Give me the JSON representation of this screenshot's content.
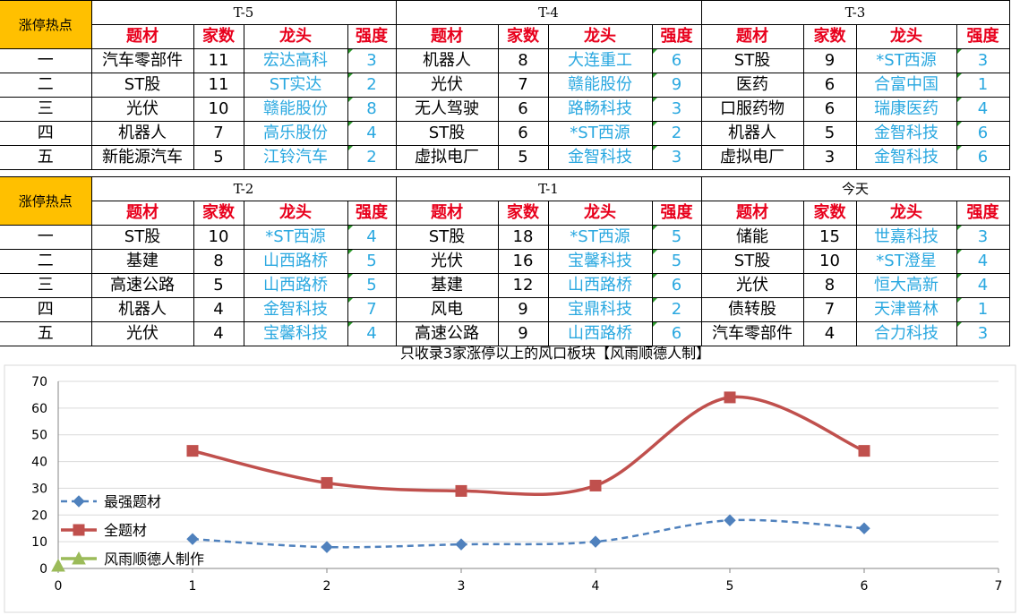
{
  "corner_label": "涨停热点",
  "column_headers": {
    "theme": "题材",
    "count": "家数",
    "leader": "龙头",
    "strength": "强度"
  },
  "rank_labels": [
    "一",
    "二",
    "三",
    "四",
    "五"
  ],
  "top_periods": [
    {
      "label": "T-5",
      "rows": [
        {
          "theme": "汽车零部件",
          "count": "11",
          "leader": "宏达高科",
          "strength": "3"
        },
        {
          "theme": "ST股",
          "count": "11",
          "leader": "ST实达",
          "strength": "2"
        },
        {
          "theme": "光伏",
          "count": "10",
          "leader": "赣能股份",
          "strength": "8"
        },
        {
          "theme": "机器人",
          "count": "7",
          "leader": "高乐股份",
          "strength": "4"
        },
        {
          "theme": "新能源汽车",
          "count": "5",
          "leader": "江铃汽车",
          "strength": "2"
        }
      ]
    },
    {
      "label": "T-4",
      "rows": [
        {
          "theme": "机器人",
          "count": "8",
          "leader": "大连重工",
          "strength": "6"
        },
        {
          "theme": "光伏",
          "count": "7",
          "leader": "赣能股份",
          "strength": "9"
        },
        {
          "theme": "无人驾驶",
          "count": "6",
          "leader": "路畅科技",
          "strength": "3"
        },
        {
          "theme": "ST股",
          "count": "6",
          "leader": "*ST西源",
          "strength": "2"
        },
        {
          "theme": "虚拟电厂",
          "count": "5",
          "leader": "金智科技",
          "strength": "3"
        }
      ]
    },
    {
      "label": "T-3",
      "rows": [
        {
          "theme": "ST股",
          "count": "9",
          "leader": "*ST西源",
          "strength": "3"
        },
        {
          "theme": "医药",
          "count": "6",
          "leader": "合富中国",
          "strength": "1"
        },
        {
          "theme": "口服药物",
          "count": "6",
          "leader": "瑞康医药",
          "strength": "4"
        },
        {
          "theme": "机器人",
          "count": "5",
          "leader": "金智科技",
          "strength": "6"
        },
        {
          "theme": "虚拟电厂",
          "count": "3",
          "leader": "金智科技",
          "strength": "6"
        }
      ]
    }
  ],
  "bottom_periods": [
    {
      "label": "T-2",
      "rows": [
        {
          "theme": "ST股",
          "count": "10",
          "leader": "*ST西源",
          "strength": "4"
        },
        {
          "theme": "基建",
          "count": "8",
          "leader": "山西路桥",
          "strength": "5"
        },
        {
          "theme": "高速公路",
          "count": "5",
          "leader": "山西路桥",
          "strength": "5"
        },
        {
          "theme": "机器人",
          "count": "4",
          "leader": "金智科技",
          "strength": "7"
        },
        {
          "theme": "光伏",
          "count": "4",
          "leader": "宝馨科技",
          "strength": "4"
        }
      ]
    },
    {
      "label": "T-1",
      "rows": [
        {
          "theme": "ST股",
          "count": "18",
          "leader": "*ST西源",
          "strength": "5"
        },
        {
          "theme": "光伏",
          "count": "16",
          "leader": "宝馨科技",
          "strength": "5"
        },
        {
          "theme": "基建",
          "count": "12",
          "leader": "山西路桥",
          "strength": "6"
        },
        {
          "theme": "风电",
          "count": "9",
          "leader": "宝鼎科技",
          "strength": "2"
        },
        {
          "theme": "高速公路",
          "count": "9",
          "leader": "山西路桥",
          "strength": "6"
        }
      ]
    },
    {
      "label": "今天",
      "rows": [
        {
          "theme": "储能",
          "count": "15",
          "leader": "世嘉科技",
          "strength": "3"
        },
        {
          "theme": "ST股",
          "count": "10",
          "leader": "*ST澄星",
          "strength": "4"
        },
        {
          "theme": "光伏",
          "count": "8",
          "leader": "恒大高新",
          "strength": "4"
        },
        {
          "theme": "债转股",
          "count": "7",
          "leader": "天津普林",
          "strength": "1"
        },
        {
          "theme": "汽车零部件",
          "count": "4",
          "leader": "合力科技",
          "strength": "3"
        }
      ]
    }
  ],
  "watermark_text": "风雨顺德人制",
  "colors": {
    "corner_bg": "#ffc000",
    "header_red": "#e8001c",
    "leader_blue": "#2aa8e0",
    "series_all": "#c0504d",
    "series_strongest": "#4f81bd",
    "series_marker": "#9bbb59",
    "grid": "#d9d9d9"
  },
  "chart_data": {
    "type": "line",
    "title": "只收录3家涨停以上的风口板块【风雨顺德人制】",
    "xlabel": "",
    "ylabel": "",
    "xlim": [
      0,
      7
    ],
    "ylim": [
      0,
      70
    ],
    "x_ticks": [
      0,
      1,
      2,
      3,
      4,
      5,
      6,
      7
    ],
    "y_ticks": [
      0,
      10,
      20,
      30,
      40,
      50,
      60,
      70
    ],
    "grid": "horizontal",
    "legend_position": "left-bottom",
    "series": [
      {
        "name": "最强题材",
        "style": "dashed-smooth",
        "marker": "diamond",
        "color": "#4f81bd",
        "x": [
          1,
          2,
          3,
          4,
          5,
          6
        ],
        "y": [
          11,
          8,
          9,
          10,
          18,
          15
        ]
      },
      {
        "name": "全题材",
        "style": "solid-smooth",
        "marker": "square",
        "color": "#c0504d",
        "x": [
          1,
          2,
          3,
          4,
          5,
          6
        ],
        "y": [
          44,
          32,
          29,
          31,
          64,
          44
        ]
      },
      {
        "name": "风雨顺德人制作",
        "style": "solid",
        "marker": "triangle",
        "color": "#9bbb59",
        "x": [
          0
        ],
        "y": [
          1
        ]
      }
    ]
  }
}
